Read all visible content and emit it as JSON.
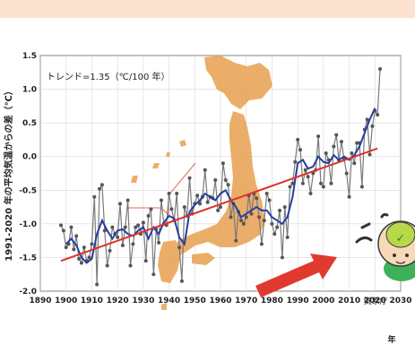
{
  "chart_data": {
    "type": "line",
    "title": "",
    "annotation": "トレンド=1.35（℃/100 年）",
    "xlabel": "年",
    "ylabel": "1991-2020 年の平均気温からの差（℃）",
    "xlim": [
      1890,
      2030
    ],
    "ylim": [
      -2.0,
      1.5
    ],
    "x_ticks": [
      "1890",
      "1900",
      "1910",
      "1920",
      "1930",
      "1940",
      "1950",
      "1960",
      "1970",
      "1980",
      "1990",
      "2000",
      "2010",
      "2020",
      "2030"
    ],
    "y_ticks": [
      "1.5",
      "1.0",
      "0.5",
      "0.0",
      "-0.5",
      "-1.0",
      "-1.5",
      "-2.0"
    ],
    "grid": true,
    "logo_text": "気象庁",
    "colors": {
      "annual": "#7a7a7a",
      "smoothed": "#2340a0",
      "trend": "#e0302a",
      "map": "#e8a050",
      "arrow": "#e03a30"
    },
    "series": [
      {
        "name": "",
        "role": "annual",
        "x": [
          1898,
          1899,
          1900,
          1901,
          1902,
          1903,
          1904,
          1905,
          1906,
          1907,
          1908,
          1909,
          1910,
          1911,
          1912,
          1913,
          1914,
          1915,
          1916,
          1917,
          1918,
          1919,
          1920,
          1921,
          1922,
          1923,
          1924,
          1925,
          1926,
          1927,
          1928,
          1929,
          1930,
          1931,
          1932,
          1933,
          1934,
          1935,
          1936,
          1937,
          1938,
          1939,
          1940,
          1941,
          1942,
          1943,
          1944,
          1945,
          1946,
          1947,
          1948,
          1949,
          1950,
          1951,
          1952,
          1953,
          1954,
          1955,
          1956,
          1957,
          1958,
          1959,
          1960,
          1961,
          1962,
          1963,
          1964,
          1965,
          1966,
          1967,
          1968,
          1969,
          1970,
          1971,
          1972,
          1973,
          1974,
          1975,
          1976,
          1977,
          1978,
          1979,
          1980,
          1981,
          1982,
          1983,
          1984,
          1985,
          1986,
          1987,
          1988,
          1989,
          1990,
          1991,
          1992,
          1993,
          1994,
          1995,
          1996,
          1997,
          1998,
          1999,
          2000,
          2001,
          2002,
          2003,
          2004,
          2005,
          2006,
          2007,
          2008,
          2009,
          2010,
          2011,
          2012,
          2013,
          2014,
          2015,
          2016,
          2017,
          2018,
          2019,
          2020,
          2021,
          2022
        ],
        "y": [
          -1.02,
          -1.1,
          -1.35,
          -1.3,
          -1.05,
          -1.38,
          -1.18,
          -1.52,
          -1.58,
          -1.35,
          -1.55,
          -1.5,
          -1.3,
          -0.6,
          -1.9,
          -0.48,
          -0.42,
          -1.1,
          -1.62,
          -1.4,
          -1.05,
          -1.15,
          -1.2,
          -0.7,
          -1.32,
          -1.05,
          -0.65,
          -1.62,
          -1.3,
          -1.05,
          -1.02,
          -1.15,
          -0.98,
          -1.55,
          -0.88,
          -0.78,
          -1.75,
          -1.08,
          -1.28,
          -0.65,
          -1.0,
          -1.02,
          -0.55,
          -0.78,
          -0.95,
          -0.55,
          -1.35,
          -1.85,
          -0.75,
          -0.88,
          -0.32,
          -0.85,
          -0.7,
          -0.58,
          -0.7,
          -0.6,
          -0.2,
          -0.68,
          -0.6,
          -0.62,
          -0.35,
          -0.8,
          -0.75,
          -0.1,
          -0.35,
          -0.42,
          -0.9,
          -0.7,
          -1.25,
          -0.82,
          -0.95,
          -1.0,
          -0.9,
          -0.58,
          -0.85,
          -0.55,
          -0.62,
          -0.9,
          -1.3,
          -0.95,
          -0.55,
          -0.65,
          -1.0,
          -1.15,
          -1.05,
          -0.8,
          -1.5,
          -0.75,
          -1.2,
          -0.45,
          -0.4,
          -0.08,
          0.25,
          0.1,
          -0.4,
          -0.2,
          -0.3,
          -0.55,
          -0.25,
          -0.2,
          0.3,
          -0.4,
          -0.45,
          0.05,
          -0.05,
          -0.4,
          0.15,
          0.32,
          -0.05,
          0.22,
          -0.03,
          -0.25,
          -0.6,
          0.05,
          -0.1,
          0.2,
          0.2,
          -0.45,
          0.4,
          0.55,
          0.03,
          0.45,
          0.68,
          0.62,
          1.3
        ]
      },
      {
        "name": "",
        "role": "smoothed",
        "x": [
          1900,
          1902,
          1904,
          1906,
          1908,
          1910,
          1912,
          1914,
          1916,
          1918,
          1920,
          1922,
          1924,
          1926,
          1928,
          1930,
          1932,
          1934,
          1936,
          1938,
          1940,
          1942,
          1944,
          1946,
          1948,
          1950,
          1952,
          1954,
          1956,
          1958,
          1960,
          1962,
          1964,
          1966,
          1968,
          1970,
          1972,
          1974,
          1976,
          1978,
          1980,
          1982,
          1984,
          1986,
          1988,
          1990,
          1992,
          1994,
          1996,
          1998,
          2000,
          2002,
          2004,
          2006,
          2008,
          2010,
          2012,
          2014,
          2016,
          2018,
          2020
        ],
        "y": [
          -1.3,
          -1.22,
          -1.32,
          -1.5,
          -1.58,
          -1.52,
          -1.15,
          -0.95,
          -1.1,
          -1.22,
          -1.1,
          -1.08,
          -1.15,
          -1.18,
          -1.1,
          -1.05,
          -1.22,
          -1.05,
          -1.15,
          -0.98,
          -0.88,
          -0.92,
          -1.2,
          -1.3,
          -0.82,
          -0.72,
          -0.65,
          -0.55,
          -0.6,
          -0.65,
          -0.55,
          -0.5,
          -0.65,
          -0.75,
          -0.9,
          -0.85,
          -0.8,
          -0.75,
          -0.8,
          -0.8,
          -0.9,
          -0.95,
          -1.0,
          -0.9,
          -0.6,
          -0.1,
          -0.05,
          -0.18,
          -0.15,
          0.0,
          -0.08,
          -0.1,
          0.02,
          -0.05,
          0.0,
          -0.05,
          0.02,
          0.15,
          0.35,
          0.55,
          0.72
        ]
      },
      {
        "name": "",
        "role": "trend",
        "x": [
          1898,
          2021
        ],
        "y": [
          -1.55,
          0.12
        ]
      }
    ]
  }
}
